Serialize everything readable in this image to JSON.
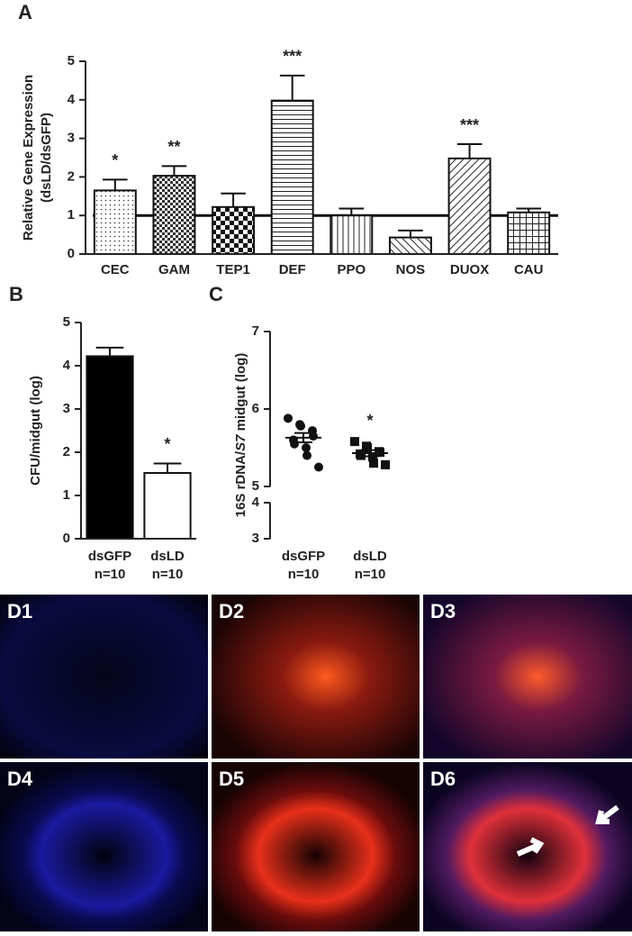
{
  "panels": {
    "A": "A",
    "B": "B",
    "C": "C"
  },
  "images": [
    "D1",
    "D2",
    "D3",
    "D4",
    "D5",
    "D6"
  ],
  "chart_data": [
    {
      "type": "bar",
      "ylabel": [
        "Relative Gene Expression",
        "(dsLD/dsGFP)"
      ],
      "categories": [
        "CEC",
        "GAM",
        "TEP1",
        "DEF",
        "PPO",
        "NOS",
        "DUOX",
        "CAU"
      ],
      "values": [
        1.65,
        2.03,
        1.22,
        3.98,
        1.0,
        0.43,
        2.48,
        1.08
      ],
      "errors": [
        0.28,
        0.25,
        0.35,
        0.65,
        0.18,
        0.18,
        0.37,
        0.1
      ],
      "annotations": [
        "*",
        "**",
        null,
        "***",
        null,
        null,
        "***",
        null
      ],
      "reference_line": 1,
      "ylim": [
        0,
        5
      ],
      "yticks": [
        0,
        1,
        2,
        3,
        4,
        5
      ]
    },
    {
      "type": "bar",
      "ylabel": [
        "CFU/midgut (log)"
      ],
      "categories": [
        "dsGFP",
        "dsLD"
      ],
      "n_labels": [
        "n=10",
        "n=10"
      ],
      "values": [
        4.22,
        1.52
      ],
      "errors": [
        0.2,
        0.22
      ],
      "colors": [
        "#000000",
        "#ffffff"
      ],
      "annotations": [
        null,
        "*"
      ],
      "ylim": [
        0,
        5
      ],
      "yticks": [
        0,
        1,
        2,
        3,
        4,
        5
      ]
    },
    {
      "type": "scatter",
      "ylabel": [
        "16S rDNA/",
        "S7",
        " midgut (log)"
      ],
      "categories": [
        "dsGFP",
        "dsLD"
      ],
      "n_labels": [
        "n=10",
        "n=10"
      ],
      "series": [
        {
          "name": "dsGFP",
          "marker": "circle",
          "values": [
            5.88,
            5.8,
            5.78,
            5.72,
            5.65,
            5.6,
            5.55,
            5.5,
            5.4,
            5.25
          ],
          "mean": 5.63,
          "sem": 0.06
        },
        {
          "name": "dsLD",
          "marker": "square",
          "values": [
            5.58,
            5.52,
            5.5,
            5.45,
            5.44,
            5.42,
            5.4,
            5.38,
            5.3,
            5.28
          ],
          "mean": 5.43,
          "sem": 0.04
        }
      ],
      "annotations": [
        null,
        "*"
      ],
      "ylim": [
        3,
        7
      ],
      "axis_break": [
        4,
        5
      ],
      "yticks": [
        3,
        4,
        5,
        6,
        7
      ]
    }
  ]
}
